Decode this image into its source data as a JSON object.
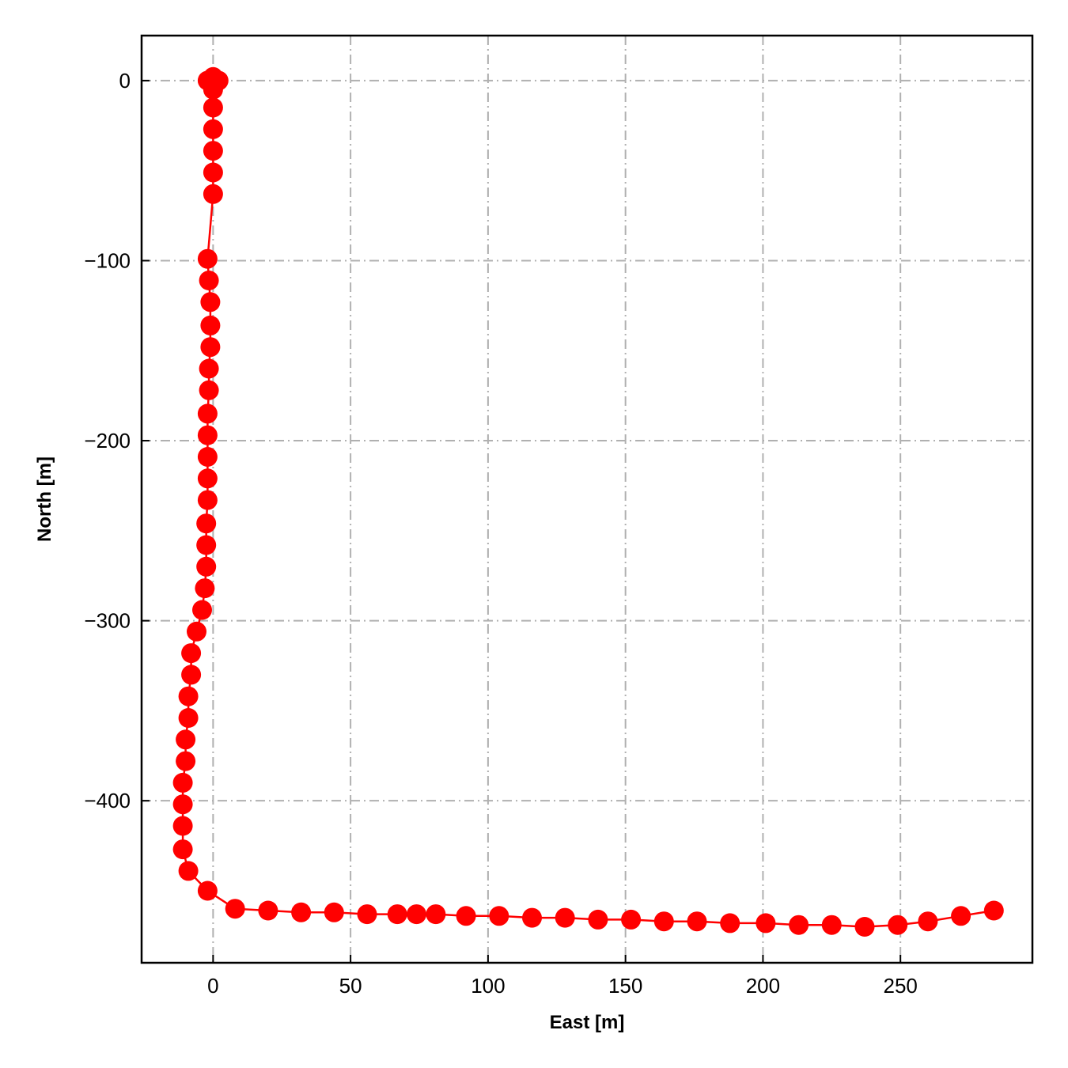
{
  "chart_data": {
    "type": "scatter",
    "title": "",
    "xlabel": "East [m]",
    "ylabel": "North [m]",
    "xlim": [
      -26,
      298
    ],
    "ylim": [
      -490,
      25
    ],
    "xticks": [
      0,
      50,
      100,
      150,
      200,
      250
    ],
    "yticks": [
      0,
      -100,
      -200,
      -300,
      -400
    ],
    "xtick_labels": [
      "0",
      "50",
      "100",
      "150",
      "200",
      "250"
    ],
    "ytick_labels": [
      "0",
      "−100",
      "−200",
      "−300",
      "−400"
    ],
    "grid": true,
    "grid_style": "dash-dot",
    "legend": "none",
    "series": [
      {
        "color": "#ff0000",
        "marker": "circle",
        "line": true,
        "x": [
          -2,
          0,
          1,
          2,
          0,
          0,
          0,
          0,
          0,
          0,
          -2,
          -1.5,
          -1,
          -1,
          -1,
          -1.5,
          -1.5,
          -2,
          -2,
          -2,
          -2,
          -2,
          -2.5,
          -2.5,
          -2.5,
          -3,
          -4,
          -6,
          -8,
          -8,
          -9,
          -9,
          -10,
          -10,
          -11,
          -11,
          -11,
          -11,
          -9,
          -2,
          8,
          20,
          32,
          44,
          56,
          67,
          74,
          81,
          92,
          104,
          116,
          128,
          140,
          152,
          164,
          176,
          188,
          201,
          213,
          225,
          237,
          249,
          260,
          272,
          284
        ],
        "y": [
          0,
          2,
          0,
          0,
          -5,
          -15,
          -27,
          -39,
          -51,
          -63,
          -99,
          -111,
          -123,
          -136,
          -148,
          -160,
          -172,
          -185,
          -197,
          -209,
          -221,
          -233,
          -246,
          -258,
          -270,
          -282,
          -294,
          -306,
          -318,
          -330,
          -342,
          -354,
          -366,
          -378,
          -390,
          -402,
          -414,
          -427,
          -439,
          -450,
          -460,
          -461,
          -462,
          -462,
          -463,
          -463,
          -463,
          -463,
          -464,
          -464,
          -465,
          -465,
          -466,
          -466,
          -467,
          -467,
          -468,
          -468,
          -469,
          -469,
          -470,
          -469,
          -467,
          -464,
          -461
        ]
      }
    ]
  }
}
